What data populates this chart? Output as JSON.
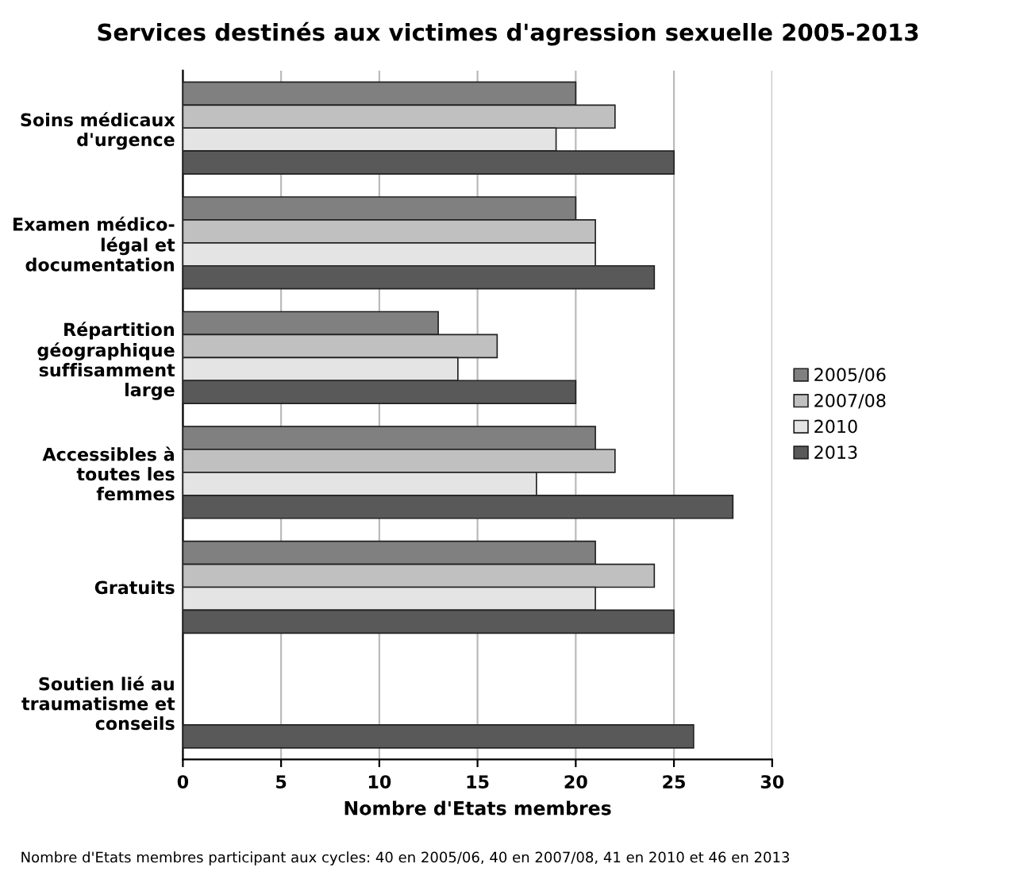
{
  "chart_data": {
    "type": "bar",
    "orientation": "horizontal",
    "title": "Services destinés aux victimes d'agression sexuelle 2005-2013",
    "xlabel": "Nombre d'Etats membres",
    "categories": [
      "Soins médicaux\nd'urgence",
      "Examen médico-\nlégal et\ndocumentation",
      "Répartition\ngéographique\nsuffisamment\nlarge",
      "Accessibles à\ntoutes les\nfemmes",
      "Gratuits",
      "Soutien lié au\ntraumatisme et\nconseils"
    ],
    "series": [
      {
        "name": "2005/06",
        "color": "#808080",
        "values": [
          20,
          20,
          13,
          21,
          21,
          null
        ]
      },
      {
        "name": "2007/08",
        "color": "#c0c0c0",
        "values": [
          22,
          21,
          16,
          22,
          24,
          null
        ]
      },
      {
        "name": "2010",
        "color": "#e4e4e4",
        "values": [
          19,
          21,
          14,
          18,
          21,
          null
        ]
      },
      {
        "name": "2013",
        "color": "#595959",
        "values": [
          25,
          24,
          20,
          28,
          25,
          26
        ]
      }
    ],
    "xlim": [
      0,
      30
    ],
    "xticks": [
      0,
      5,
      10,
      15,
      20,
      25,
      30
    ],
    "grid": "x",
    "legend": "right",
    "annotations": [
      "Nombre d'Etats membres participant aux cycles: 40 en 2005/06, 40 en 2007/08, 41 en 2010 et 46 en 2013"
    ]
  }
}
